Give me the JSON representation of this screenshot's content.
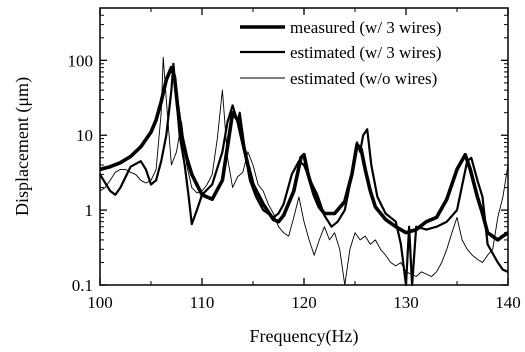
{
  "chart_data": {
    "type": "line",
    "xlabel": "Frequency(Hz)",
    "ylabel": "Displacement (μm)",
    "xlim": [
      100,
      140
    ],
    "ylim": [
      0.1,
      500
    ],
    "yscale": "log",
    "xticks": [
      100,
      110,
      120,
      130,
      140
    ],
    "yticks": [
      0.1,
      1,
      10,
      100
    ],
    "ytick_labels": [
      "0.1",
      "1",
      "10",
      "100"
    ],
    "legend_position": "top-right",
    "grid": false,
    "series": [
      {
        "name": "measured (w/ 3 wires)",
        "style": "thick",
        "x": [
          100,
          101,
          102,
          103,
          104,
          105,
          105.5,
          106,
          106.5,
          107,
          107.3,
          107.6,
          108,
          108.5,
          109,
          110,
          111,
          112,
          112.5,
          113,
          113.5,
          114,
          114.5,
          115,
          116,
          117,
          117.5,
          118,
          119,
          119.7,
          120,
          120.4,
          121,
          121.5,
          122,
          123,
          124,
          124.7,
          125.2,
          125.6,
          126,
          126.5,
          127,
          128,
          129,
          130,
          131,
          132,
          133,
          134,
          135,
          135.8,
          136.3,
          137,
          137.5,
          138,
          139,
          139.5,
          140
        ],
        "y": [
          3.5,
          3.8,
          4.3,
          5.2,
          7,
          11,
          16,
          28,
          55,
          80,
          60,
          25,
          10,
          5,
          3,
          1.6,
          1.4,
          2.5,
          7,
          20,
          16,
          8,
          4,
          2.2,
          1.2,
          0.75,
          0.7,
          0.85,
          1.8,
          5,
          5.5,
          3,
          1.6,
          1.1,
          0.9,
          0.9,
          1.3,
          3,
          7.5,
          6.5,
          3.5,
          1.8,
          1.1,
          0.75,
          0.6,
          0.5,
          0.55,
          0.7,
          0.8,
          1.4,
          3.5,
          5.5,
          3.5,
          1.5,
          0.9,
          0.5,
          0.4,
          0.45,
          0.5
        ]
      },
      {
        "name": "estimated (w/ 3 wires)",
        "style": "medium",
        "x": [
          100,
          101,
          101.5,
          102,
          103,
          104,
          104.5,
          105,
          105.5,
          106,
          106.5,
          107,
          107.2,
          107.5,
          107.8,
          108.3,
          108.7,
          109,
          109.5,
          110,
          111,
          112,
          112.5,
          113,
          113.5,
          113.7,
          114,
          114.3,
          114.7,
          115.3,
          116,
          117,
          117.5,
          118,
          118.8,
          119.5,
          120,
          120.6,
          121.3,
          122,
          122.7,
          123.3,
          124,
          124.7,
          125.2,
          125.5,
          125.8,
          126.2,
          126.6,
          127.2,
          128,
          129,
          129.5,
          130,
          130.3,
          130.6,
          131,
          132,
          133,
          134,
          135,
          136,
          136.4,
          137,
          137.5,
          138,
          139,
          139.5,
          140
        ],
        "y": [
          3,
          1.8,
          1.6,
          2,
          3.8,
          4.5,
          3.5,
          2.2,
          2.5,
          4.5,
          10,
          40,
          90,
          30,
          10,
          4,
          1.5,
          0.65,
          1,
          1.6,
          2.2,
          6,
          15,
          25,
          15,
          20,
          10,
          5,
          2.5,
          1.5,
          1,
          0.8,
          0.9,
          1.2,
          3,
          4.5,
          4,
          2.5,
          1.6,
          0.85,
          0.6,
          0.7,
          1,
          3,
          8,
          6,
          10,
          12,
          4,
          1.5,
          0.9,
          0.7,
          0.35,
          0.1,
          0.6,
          0.1,
          0.6,
          0.55,
          0.6,
          0.7,
          1,
          4.5,
          5,
          2.5,
          1.5,
          0.35,
          0.2,
          0.16,
          0.15
        ]
      },
      {
        "name": "estimated (w/o wires)",
        "style": "thin",
        "x": [
          100,
          100.5,
          101,
          101.5,
          102,
          102.5,
          103,
          103.5,
          104,
          104.5,
          105,
          105.5,
          106,
          106.2,
          106.5,
          107,
          107.5,
          108,
          108.5,
          109,
          109.5,
          110,
          110.5,
          111,
          111.5,
          112,
          112.5,
          113,
          113.5,
          114,
          114.5,
          115,
          115.5,
          116,
          116.5,
          117,
          117.5,
          118,
          118.5,
          119,
          119.5,
          120,
          120.5,
          121,
          121.5,
          122,
          122.5,
          123,
          123.5,
          124,
          124.5,
          125,
          125.5,
          126,
          126.5,
          127,
          127.5,
          128,
          128.5,
          129,
          129.5,
          130,
          130.5,
          131,
          131.5,
          132,
          132.5,
          133,
          133.5,
          134,
          134.5,
          135,
          135.5,
          136,
          136.5,
          137,
          137.5,
          138,
          138.5,
          139,
          139.5,
          140
        ],
        "y": [
          1.8,
          2,
          2.5,
          3.2,
          3.5,
          3.5,
          3.2,
          3,
          2.5,
          2.3,
          2.5,
          3.5,
          20,
          110,
          30,
          4,
          6,
          15,
          4,
          2,
          1.7,
          1.8,
          2.2,
          3,
          9,
          40,
          5,
          2,
          2.8,
          3.2,
          6,
          4,
          2.2,
          1.8,
          1.2,
          0.9,
          0.6,
          0.5,
          0.45,
          0.8,
          1.5,
          0.7,
          0.4,
          0.25,
          0.4,
          0.6,
          0.4,
          0.5,
          0.3,
          0.1,
          0.3,
          0.5,
          0.4,
          0.45,
          0.35,
          0.4,
          0.3,
          0.25,
          0.2,
          0.18,
          0.2,
          0.15,
          0.14,
          0.13,
          0.15,
          0.14,
          0.13,
          0.15,
          0.2,
          0.3,
          0.5,
          0.8,
          0.4,
          0.3,
          0.25,
          0.22,
          0.2,
          0.25,
          0.3,
          0.8,
          1.5,
          4
        ]
      }
    ]
  }
}
